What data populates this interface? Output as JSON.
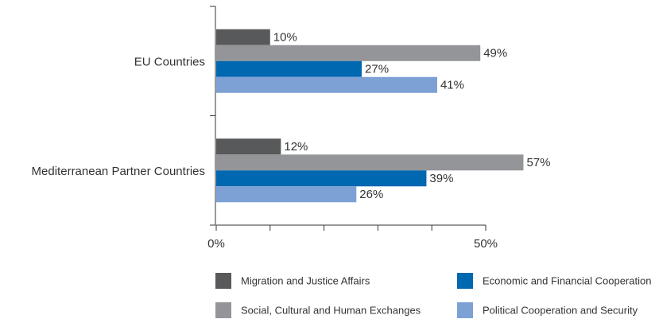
{
  "chart_data": {
    "type": "barh",
    "categories": [
      "EU Countries",
      "Mediterranean Partner Countries"
    ],
    "series": [
      {
        "name": "Migration and Justice Affairs",
        "color": "#58595b",
        "values": [
          10,
          12
        ],
        "value_labels": [
          "10%",
          "12%"
        ]
      },
      {
        "name": "Social, Cultural and Human Exchanges",
        "color": "#939598",
        "values": [
          49,
          57
        ],
        "value_labels": [
          "49%",
          "57%"
        ]
      },
      {
        "name": "Economic and Financial Cooperation",
        "color": "#0067b1",
        "values": [
          27,
          39
        ],
        "value_labels": [
          "27%",
          "39%"
        ]
      },
      {
        "name": "Political Cooperation and Security",
        "color": "#7da1d4",
        "values": [
          41,
          26
        ],
        "value_labels": [
          "41%",
          "26%"
        ]
      }
    ],
    "xlim": [
      0,
      50
    ],
    "xticks": [
      {
        "value": 0,
        "label": "0%"
      },
      10,
      20,
      30,
      40,
      {
        "value": 50,
        "label": "50%"
      }
    ],
    "grid": false
  }
}
